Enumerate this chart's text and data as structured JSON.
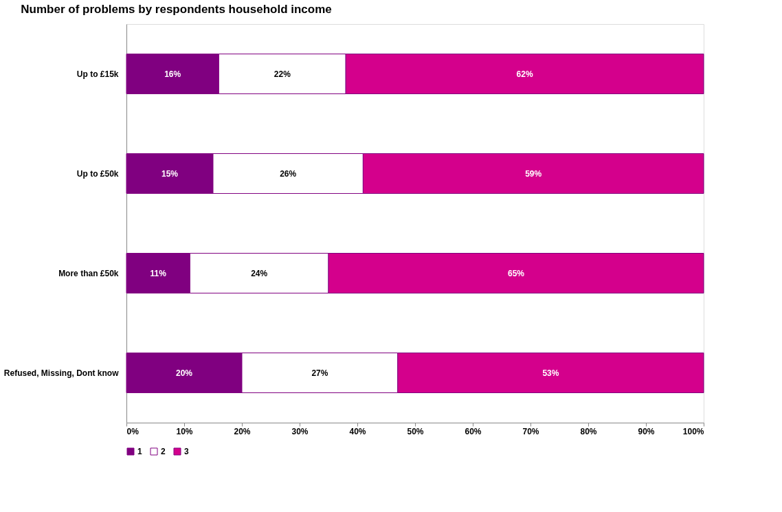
{
  "chart_data": {
    "type": "bar",
    "orientation": "horizontal",
    "stacked": true,
    "title": "Number of problems by respondents household income",
    "categories": [
      "Up to £15k",
      "Up to £50k",
      "More than £50k",
      "Refused, Missing, Dont know"
    ],
    "series": [
      {
        "name": "1",
        "color": "#800080",
        "values": [
          16,
          15,
          11,
          20
        ],
        "value_labels": [
          "16%",
          "15%",
          "11%",
          "20%"
        ]
      },
      {
        "name": "2",
        "color": "#ffffff",
        "values": [
          22,
          26,
          24,
          27
        ],
        "value_labels": [
          "22%",
          "26%",
          "24%",
          "27%"
        ]
      },
      {
        "name": "3",
        "color": "#d4008c",
        "values": [
          62,
          59,
          65,
          53
        ],
        "value_labels": [
          "62%",
          "59%",
          "65%",
          "53%"
        ]
      }
    ],
    "xlim": [
      0,
      100
    ],
    "xticks": [
      {
        "value": 0,
        "label": "0%"
      },
      {
        "value": 10,
        "label": "10%"
      },
      {
        "value": 20,
        "label": "20%"
      },
      {
        "value": 30,
        "label": "30%"
      },
      {
        "value": 40,
        "label": "40%"
      },
      {
        "value": 50,
        "label": "50%"
      },
      {
        "value": 60,
        "label": "60%"
      },
      {
        "value": 70,
        "label": "70%"
      },
      {
        "value": 80,
        "label": "80%"
      },
      {
        "value": 90,
        "label": "90%"
      },
      {
        "value": 100,
        "label": "100%"
      }
    ],
    "grid": false,
    "legend": "bottom"
  }
}
